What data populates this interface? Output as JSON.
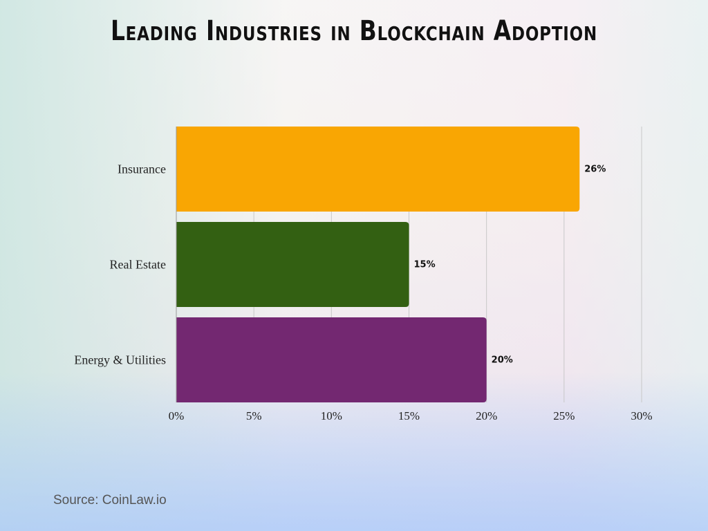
{
  "chart_data": {
    "type": "bar",
    "orientation": "horizontal",
    "title": "Leading Industries in Blockchain Adoption",
    "categories": [
      "Insurance",
      "Real Estate",
      "Energy & Utilities"
    ],
    "values": [
      26,
      15,
      20
    ],
    "data_labels": [
      "26%",
      "15%",
      "20%"
    ],
    "colors": [
      "#f9a603",
      "#336012",
      "#732871"
    ],
    "xlim": [
      0,
      30
    ],
    "xticks": [
      0,
      5,
      10,
      15,
      20,
      25,
      30
    ],
    "xtick_labels": [
      "0%",
      "5%",
      "10%",
      "15%",
      "20%",
      "25%",
      "30%"
    ],
    "grid": true,
    "xlabel": "",
    "ylabel": ""
  },
  "source": "Source: CoinLaw.io"
}
